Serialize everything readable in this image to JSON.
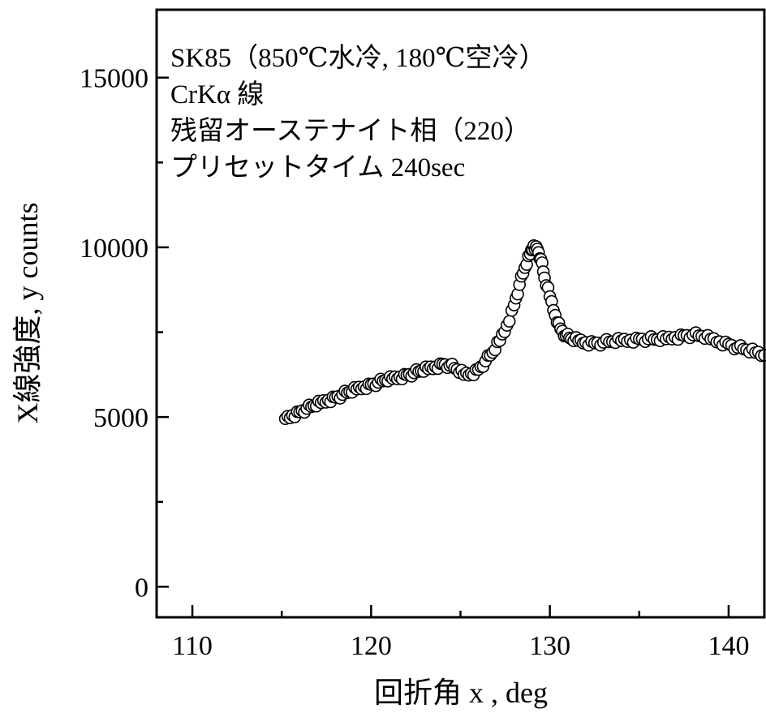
{
  "chart_data": {
    "type": "scatter",
    "xlabel": "回折角 x , deg",
    "ylabel": "X線強度, y counts",
    "xlim": [
      108,
      142
    ],
    "ylim": [
      -900,
      17000
    ],
    "x_ticks": [
      110,
      120,
      130,
      140
    ],
    "y_ticks": [
      0,
      5000,
      10000,
      15000
    ],
    "x_tick_labels": [
      "110",
      "120",
      "130",
      "140"
    ],
    "y_tick_labels": [
      "0",
      "5000",
      "10000",
      "15000"
    ],
    "annotations": [
      "SK85（850℃水冷, 180℃空冷）",
      "CrKα 線",
      "残留オーステナイト相（220）",
      "プリセットタイム 240sec"
    ],
    "grid": false,
    "marker": "open-circle",
    "x": [
      115.2,
      115.6,
      116.0,
      116.4,
      116.8,
      117.2,
      117.6,
      118.0,
      118.4,
      118.8,
      119.2,
      119.6,
      120.0,
      120.4,
      120.8,
      121.2,
      121.6,
      122.0,
      122.4,
      122.8,
      123.2,
      123.6,
      124.0,
      124.4,
      124.8,
      125.2,
      125.6,
      126.0,
      126.4,
      126.8,
      127.2,
      127.6,
      128.0,
      128.3,
      128.6,
      128.9,
      129.1,
      129.3,
      129.5,
      129.7,
      130.0,
      130.3,
      130.6,
      130.9,
      131.2,
      131.6,
      132.0,
      132.5,
      133.0,
      133.5,
      134.0,
      134.5,
      135.0,
      135.5,
      136.0,
      136.5,
      137.0,
      137.5,
      138.0,
      138.5,
      139.0,
      139.5,
      140.0,
      140.5,
      141.0,
      141.5,
      142.0
    ],
    "y": [
      4950,
      5050,
      5150,
      5250,
      5330,
      5420,
      5500,
      5580,
      5660,
      5740,
      5820,
      5890,
      5960,
      6020,
      6080,
      6130,
      6180,
      6240,
      6300,
      6360,
      6420,
      6480,
      6560,
      6520,
      6400,
      6250,
      6280,
      6400,
      6650,
      6900,
      7250,
      7700,
      8300,
      8900,
      9400,
      9800,
      10050,
      9950,
      9650,
      9100,
      8550,
      8000,
      7600,
      7400,
      7300,
      7250,
      7200,
      7180,
      7200,
      7220,
      7250,
      7270,
      7300,
      7300,
      7280,
      7300,
      7350,
      7400,
      7420,
      7380,
      7300,
      7220,
      7150,
      7050,
      6980,
      6900,
      6820
    ]
  }
}
